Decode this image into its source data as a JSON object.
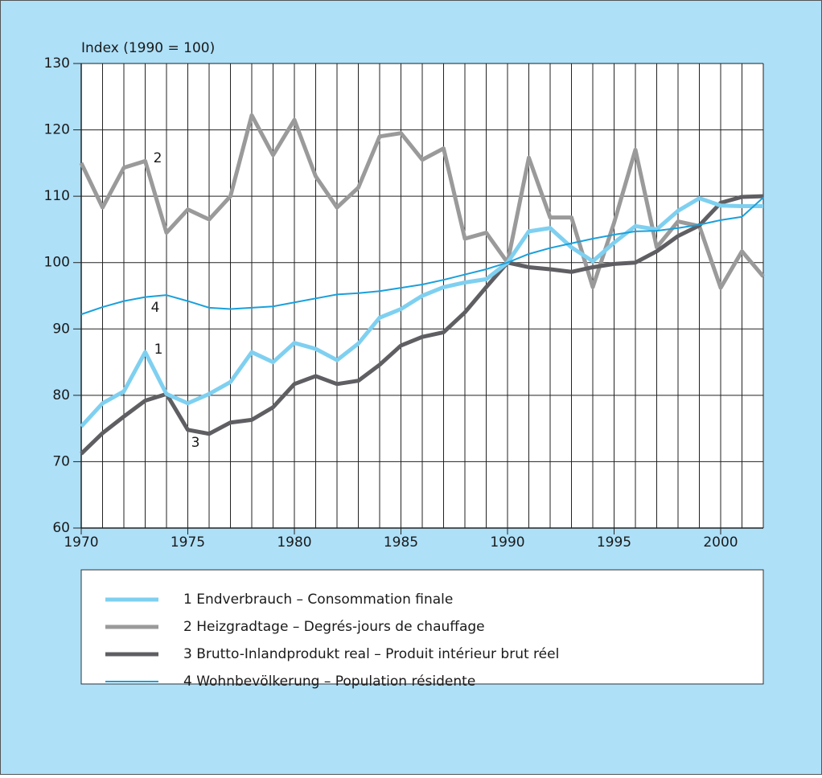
{
  "chart_data": {
    "type": "line",
    "y_label": "Index (1990 = 100)",
    "x": [
      1970,
      1971,
      1972,
      1973,
      1974,
      1975,
      1976,
      1977,
      1978,
      1979,
      1980,
      1981,
      1982,
      1983,
      1984,
      1985,
      1986,
      1987,
      1988,
      1989,
      1990,
      1991,
      1992,
      1993,
      1994,
      1995,
      1996,
      1997,
      1998,
      1999,
      2000,
      2001,
      2002
    ],
    "xlim": [
      1970,
      2002
    ],
    "xticks": [
      1970,
      1975,
      1980,
      1985,
      1990,
      1995,
      2000
    ],
    "ylim": [
      60,
      130
    ],
    "yticks": [
      60,
      70,
      80,
      90,
      100,
      110,
      120,
      130
    ],
    "grid": true,
    "series": [
      {
        "name": "1 Endverbrauch – Consommation finale",
        "color": "#7fd0f0",
        "line_width": 5,
        "values": [
          75.3,
          78.8,
          80.6,
          86.5,
          80.2,
          78.8,
          80.2,
          82,
          86.5,
          85,
          87.9,
          87,
          85.3,
          87.8,
          91.7,
          93,
          95,
          96.3,
          97,
          97.5,
          100,
          104.7,
          105.2,
          102.3,
          100.2,
          103,
          105.5,
          105,
          107.8,
          109.7,
          108.6,
          108.5,
          108.5
        ]
      },
      {
        "name": "2 Heizgradtage – Degrés-jours de chauffage",
        "color": "#9a9a9a",
        "line_width": 5,
        "values": [
          115,
          108.3,
          114.3,
          115.3,
          104.5,
          108,
          106.5,
          110,
          122.2,
          116.2,
          121.5,
          113,
          108.3,
          111.3,
          119,
          119.5,
          115.5,
          117.2,
          103.6,
          104.5,
          100,
          115.8,
          106.8,
          106.8,
          96.3,
          106,
          117,
          102.3,
          106.2,
          105.5,
          96.2,
          101.7,
          97.9
        ]
      },
      {
        "name": "3 Brutto-Inlandprodukt real – Produit intérieur brut réel",
        "color": "#5f5f63",
        "line_width": 5,
        "values": [
          71.2,
          74.3,
          76.8,
          79.2,
          80.2,
          74.8,
          74.2,
          75.9,
          76.3,
          78.2,
          81.7,
          82.9,
          81.7,
          82.2,
          84.6,
          87.5,
          88.8,
          89.5,
          92.5,
          96.3,
          100,
          99.3,
          99,
          98.6,
          99.3,
          99.8,
          100,
          101.7,
          104,
          105.6,
          109,
          109.9,
          110
        ]
      },
      {
        "name": "4 Wohnbevölkerung – Population résidente",
        "color": "#1aa0dc",
        "line_width": 2,
        "values": [
          92.2,
          93.3,
          94.2,
          94.8,
          95.1,
          94.2,
          93.2,
          93,
          93.2,
          93.4,
          94,
          94.6,
          95.2,
          95.4,
          95.7,
          96.2,
          96.7,
          97.4,
          98.2,
          99,
          100,
          101.3,
          102.2,
          102.9,
          103.6,
          104.2,
          104.7,
          104.8,
          105.2,
          105.7,
          106.4,
          106.9,
          109.8
        ]
      }
    ],
    "annotations": [
      "1",
      "2",
      "3",
      "4"
    ]
  }
}
